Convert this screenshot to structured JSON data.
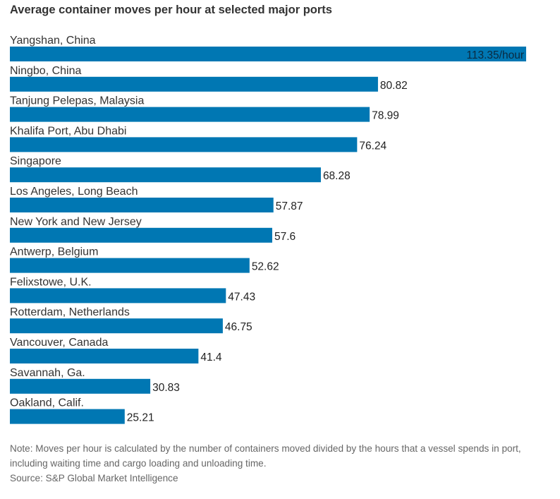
{
  "chart_data": {
    "type": "bar",
    "orientation": "horizontal",
    "title": "Average container moves per hour at selected major ports",
    "categories": [
      "Yangshan, China",
      "Ningbo, China",
      "Tanjung Pelepas, Malaysia",
      "Khalifa Port, Abu Dhabi",
      "Singapore",
      "Los Angeles, Long Beach",
      "New York and New Jersey",
      "Antwerp, Belgium",
      "Felixstowe, U.K.",
      "Rotterdam, Netherlands",
      "Vancouver, Canada",
      "Savannah, Ga.",
      "Oakland, Calif."
    ],
    "values": [
      113.35,
      80.82,
      78.99,
      76.24,
      68.28,
      57.87,
      57.6,
      52.62,
      47.43,
      46.75,
      41.4,
      30.83,
      25.21
    ],
    "value_labels": [
      "113.35/hour",
      "80.82",
      "78.99",
      "76.24",
      "68.28",
      "57.87",
      "57.6",
      "52.62",
      "47.43",
      "46.75",
      "41.4",
      "30.83",
      "25.21"
    ],
    "bar_color": "#0077b3",
    "xlim": [
      0,
      113.35
    ],
    "grid": false,
    "legend": "none"
  },
  "note": "Note: Moves per hour is calculated by the number of containers moved divided by the hours that a vessel spends in port, including waiting time and cargo loading and unloading time.",
  "source": "Source: S&P Global Market Intelligence"
}
